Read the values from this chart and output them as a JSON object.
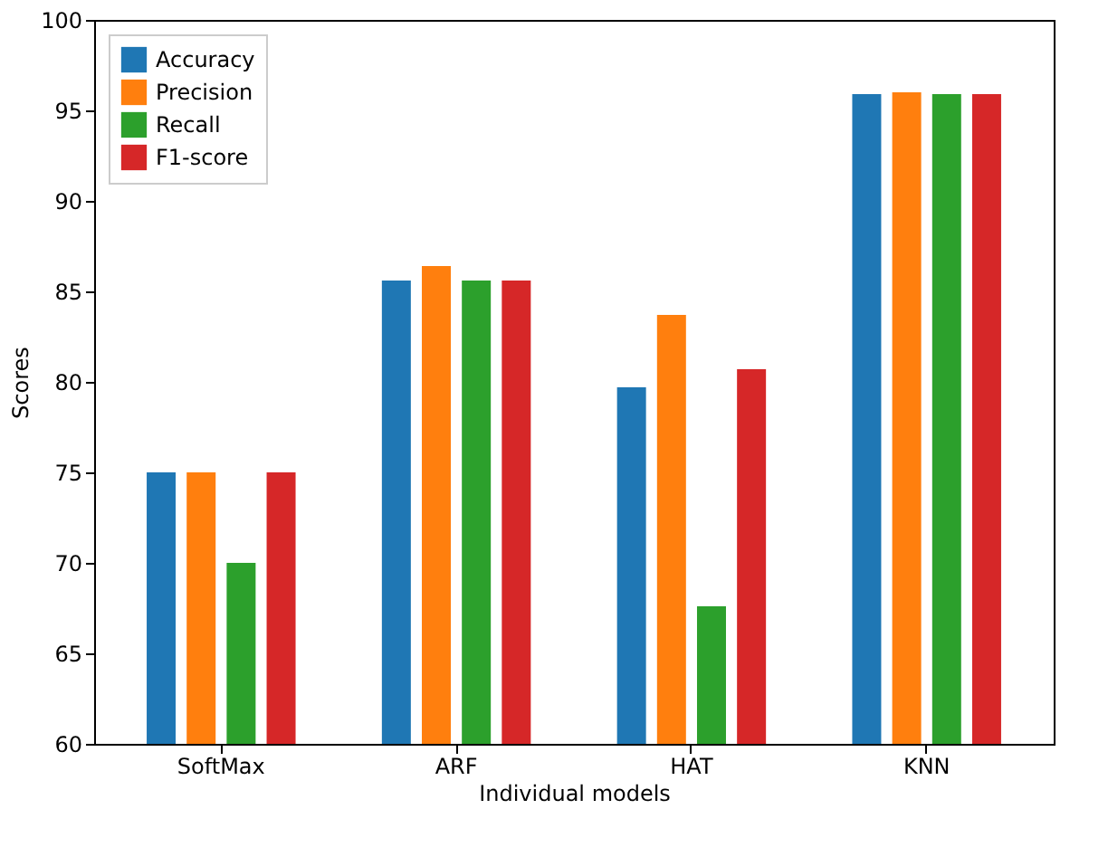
{
  "chart_data": {
    "type": "bar",
    "xlabel": "Individual models",
    "ylabel": "Scores",
    "categories": [
      "SoftMax",
      "ARF",
      "HAT",
      "KNN"
    ],
    "series": [
      {
        "name": "Accuracy",
        "color": "#1f77b4",
        "values": [
          75.0,
          85.6,
          79.7,
          95.9
        ]
      },
      {
        "name": "Precision",
        "color": "#ff7f0e",
        "values": [
          75.0,
          86.4,
          83.7,
          96.0
        ]
      },
      {
        "name": "Recall",
        "color": "#2ca02c",
        "values": [
          70.0,
          85.6,
          67.6,
          95.9
        ]
      },
      {
        "name": "F1-score",
        "color": "#d62728",
        "values": [
          75.0,
          85.6,
          80.7,
          95.9
        ]
      }
    ],
    "ylim": [
      60,
      100
    ],
    "yticks": [
      60,
      65,
      70,
      75,
      80,
      85,
      90,
      95,
      100
    ],
    "grid": false,
    "legend": "top left"
  }
}
